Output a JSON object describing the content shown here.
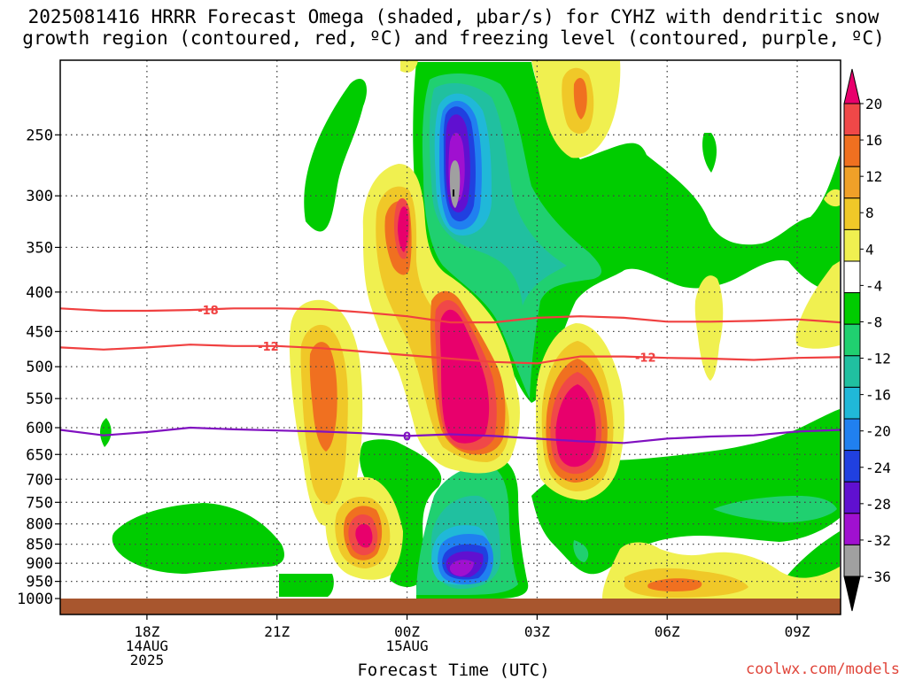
{
  "title_line1": "2025081416 HRRR Forecast Omega (shaded, μbar/s) for CYHZ with dendritic snow",
  "title_line2": "growth region (contoured, red, ºC) and freezing level (contoured, purple, ºC)",
  "credit": "coolwx.com/models",
  "chart_data": {
    "type": "contour",
    "title": "2025081416 HRRR Forecast Omega (shaded, μbar/s) for CYHZ with dendritic snow growth region (contoured, red, ºC) and freezing level (contoured, purple, ºC)",
    "xlabel": "Forecast Time (UTC)",
    "ylabel": "",
    "y_scale": "log-pressure (hPa, inverted)",
    "xlim": [
      16,
      34
    ],
    "ylim": [
      1000,
      200
    ],
    "x_ticks": [
      {
        "x": 18,
        "lines": [
          "18Z",
          "14AUG",
          "2025"
        ]
      },
      {
        "x": 21,
        "lines": [
          "21Z"
        ]
      },
      {
        "x": 24,
        "lines": [
          "00Z",
          "15AUG"
        ]
      },
      {
        "x": 27,
        "lines": [
          "03Z"
        ]
      },
      {
        "x": 30,
        "lines": [
          "06Z"
        ]
      },
      {
        "x": 33,
        "lines": [
          "09Z"
        ]
      }
    ],
    "y_ticks": [
      250,
      300,
      350,
      400,
      450,
      500,
      550,
      600,
      650,
      700,
      750,
      800,
      850,
      900,
      950,
      1000
    ],
    "grid": true,
    "colorbar": {
      "levels": [
        -36,
        -32,
        -28,
        -24,
        -20,
        -16,
        -12,
        -8,
        -4,
        4,
        8,
        12,
        16,
        20
      ],
      "labels": [
        "20",
        "16",
        "12",
        "8",
        "4",
        "-4",
        "-8",
        "-12",
        "-16",
        "-20",
        "-24",
        "-28",
        "-32",
        "-36"
      ],
      "colors": [
        "#e8006c",
        "#f04848",
        "#f07020",
        "#f0a028",
        "#f0c828",
        "#f0f050",
        "#ffffff",
        "#00cc00",
        "#20d070",
        "#20c0a0",
        "#20b8d8",
        "#2080f0",
        "#2040e0",
        "#6010d0",
        "#a010d0",
        "#a0a0a0",
        "#000000"
      ]
    },
    "omega_features": [
      {
        "x": 25.1,
        "p": 300,
        "omega": -33,
        "note": "upper-level ascent max"
      },
      {
        "x": 25.2,
        "p": 890,
        "omega": -28,
        "note": "low-level ascent max"
      },
      {
        "x": 24.0,
        "p": 330,
        "omega": 20
      },
      {
        "x": 25.3,
        "p": 510,
        "omega": 24
      },
      {
        "x": 27.6,
        "p": 570,
        "omega": 24
      },
      {
        "x": 22.9,
        "p": 810,
        "omega": 20
      },
      {
        "x": 21.9,
        "p": 500,
        "omega": 13
      },
      {
        "x": 28.8,
        "p": 240,
        "omega": 12
      },
      {
        "x": 30.2,
        "p": 960,
        "omega": 12
      }
    ],
    "series": [
      {
        "name": "-18",
        "color": "#f04040",
        "x": [
          16,
          17,
          18,
          19,
          20,
          21,
          22,
          23,
          24,
          25,
          26,
          27,
          28,
          29,
          30,
          31,
          32,
          33,
          34
        ],
        "y": [
          420,
          423,
          423,
          422,
          420,
          420,
          421,
          425,
          430,
          438,
          438,
          432,
          430,
          432,
          437,
          437,
          436,
          434,
          438
        ]
      },
      {
        "name": "-12",
        "color": "#f04040",
        "x": [
          16,
          17,
          18,
          19,
          20,
          21,
          22,
          23,
          24,
          25,
          26,
          27,
          28,
          29,
          30,
          31,
          32,
          33,
          34
        ],
        "y": [
          472,
          475,
          472,
          468,
          470,
          470,
          473,
          478,
          483,
          488,
          493,
          495,
          485,
          485,
          487,
          488,
          490,
          487,
          486
        ]
      },
      {
        "name": "0",
        "color": "#8010c0",
        "x": [
          16,
          17,
          18,
          19,
          20,
          21,
          22,
          23,
          24,
          25,
          26,
          27,
          28,
          29,
          30,
          31,
          32,
          33,
          34
        ],
        "y": [
          604,
          614,
          608,
          600,
          603,
          605,
          607,
          610,
          615,
          612,
          615,
          620,
          625,
          628,
          620,
          616,
          614,
          607,
          604
        ]
      }
    ]
  }
}
